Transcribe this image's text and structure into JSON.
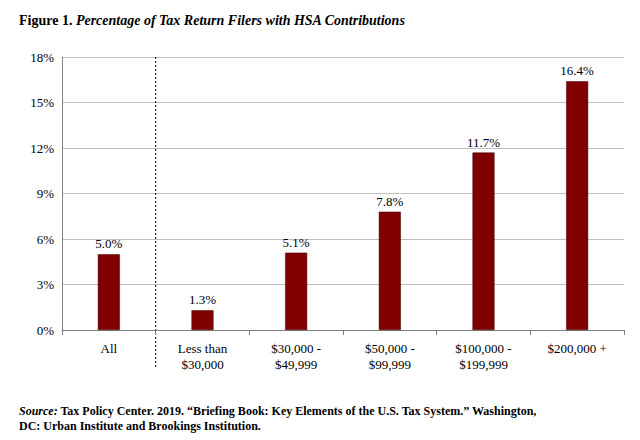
{
  "chart_data": {
    "type": "bar",
    "title": "Figure 1. Percentage of Tax Return Filers with HSA Contributions",
    "source": "Source: Tax Policy Center. 2019. “Briefing Book: Key Elements of the U.S. Tax System.” Washington, DC: Urban Institute and Brookings Institution.",
    "categories": [
      "All",
      "Less than\n$30,000",
      "$30,000 -\n$49,999",
      "$50,000 -\n$99,999",
      "$100,000 -\n$199,999",
      "$200,000 +"
    ],
    "values": [
      5.0,
      1.3,
      5.1,
      7.8,
      11.7,
      16.4
    ],
    "value_labels": [
      "5.0%",
      "1.3%",
      "5.1%",
      "7.8%",
      "11.7%",
      "16.4%"
    ],
    "color": "#800000",
    "ylim": [
      0,
      18
    ],
    "yticks": [
      {
        "value": 0,
        "label": "0%"
      },
      {
        "value": 3,
        "label": "3%"
      },
      {
        "value": 6,
        "label": "6%"
      },
      {
        "value": 9,
        "label": "9%"
      },
      {
        "value": 12,
        "label": "12%"
      },
      {
        "value": 15,
        "label": "15%"
      },
      {
        "value": 18,
        "label": "18%"
      }
    ],
    "grid": true,
    "data_labels": true
  }
}
